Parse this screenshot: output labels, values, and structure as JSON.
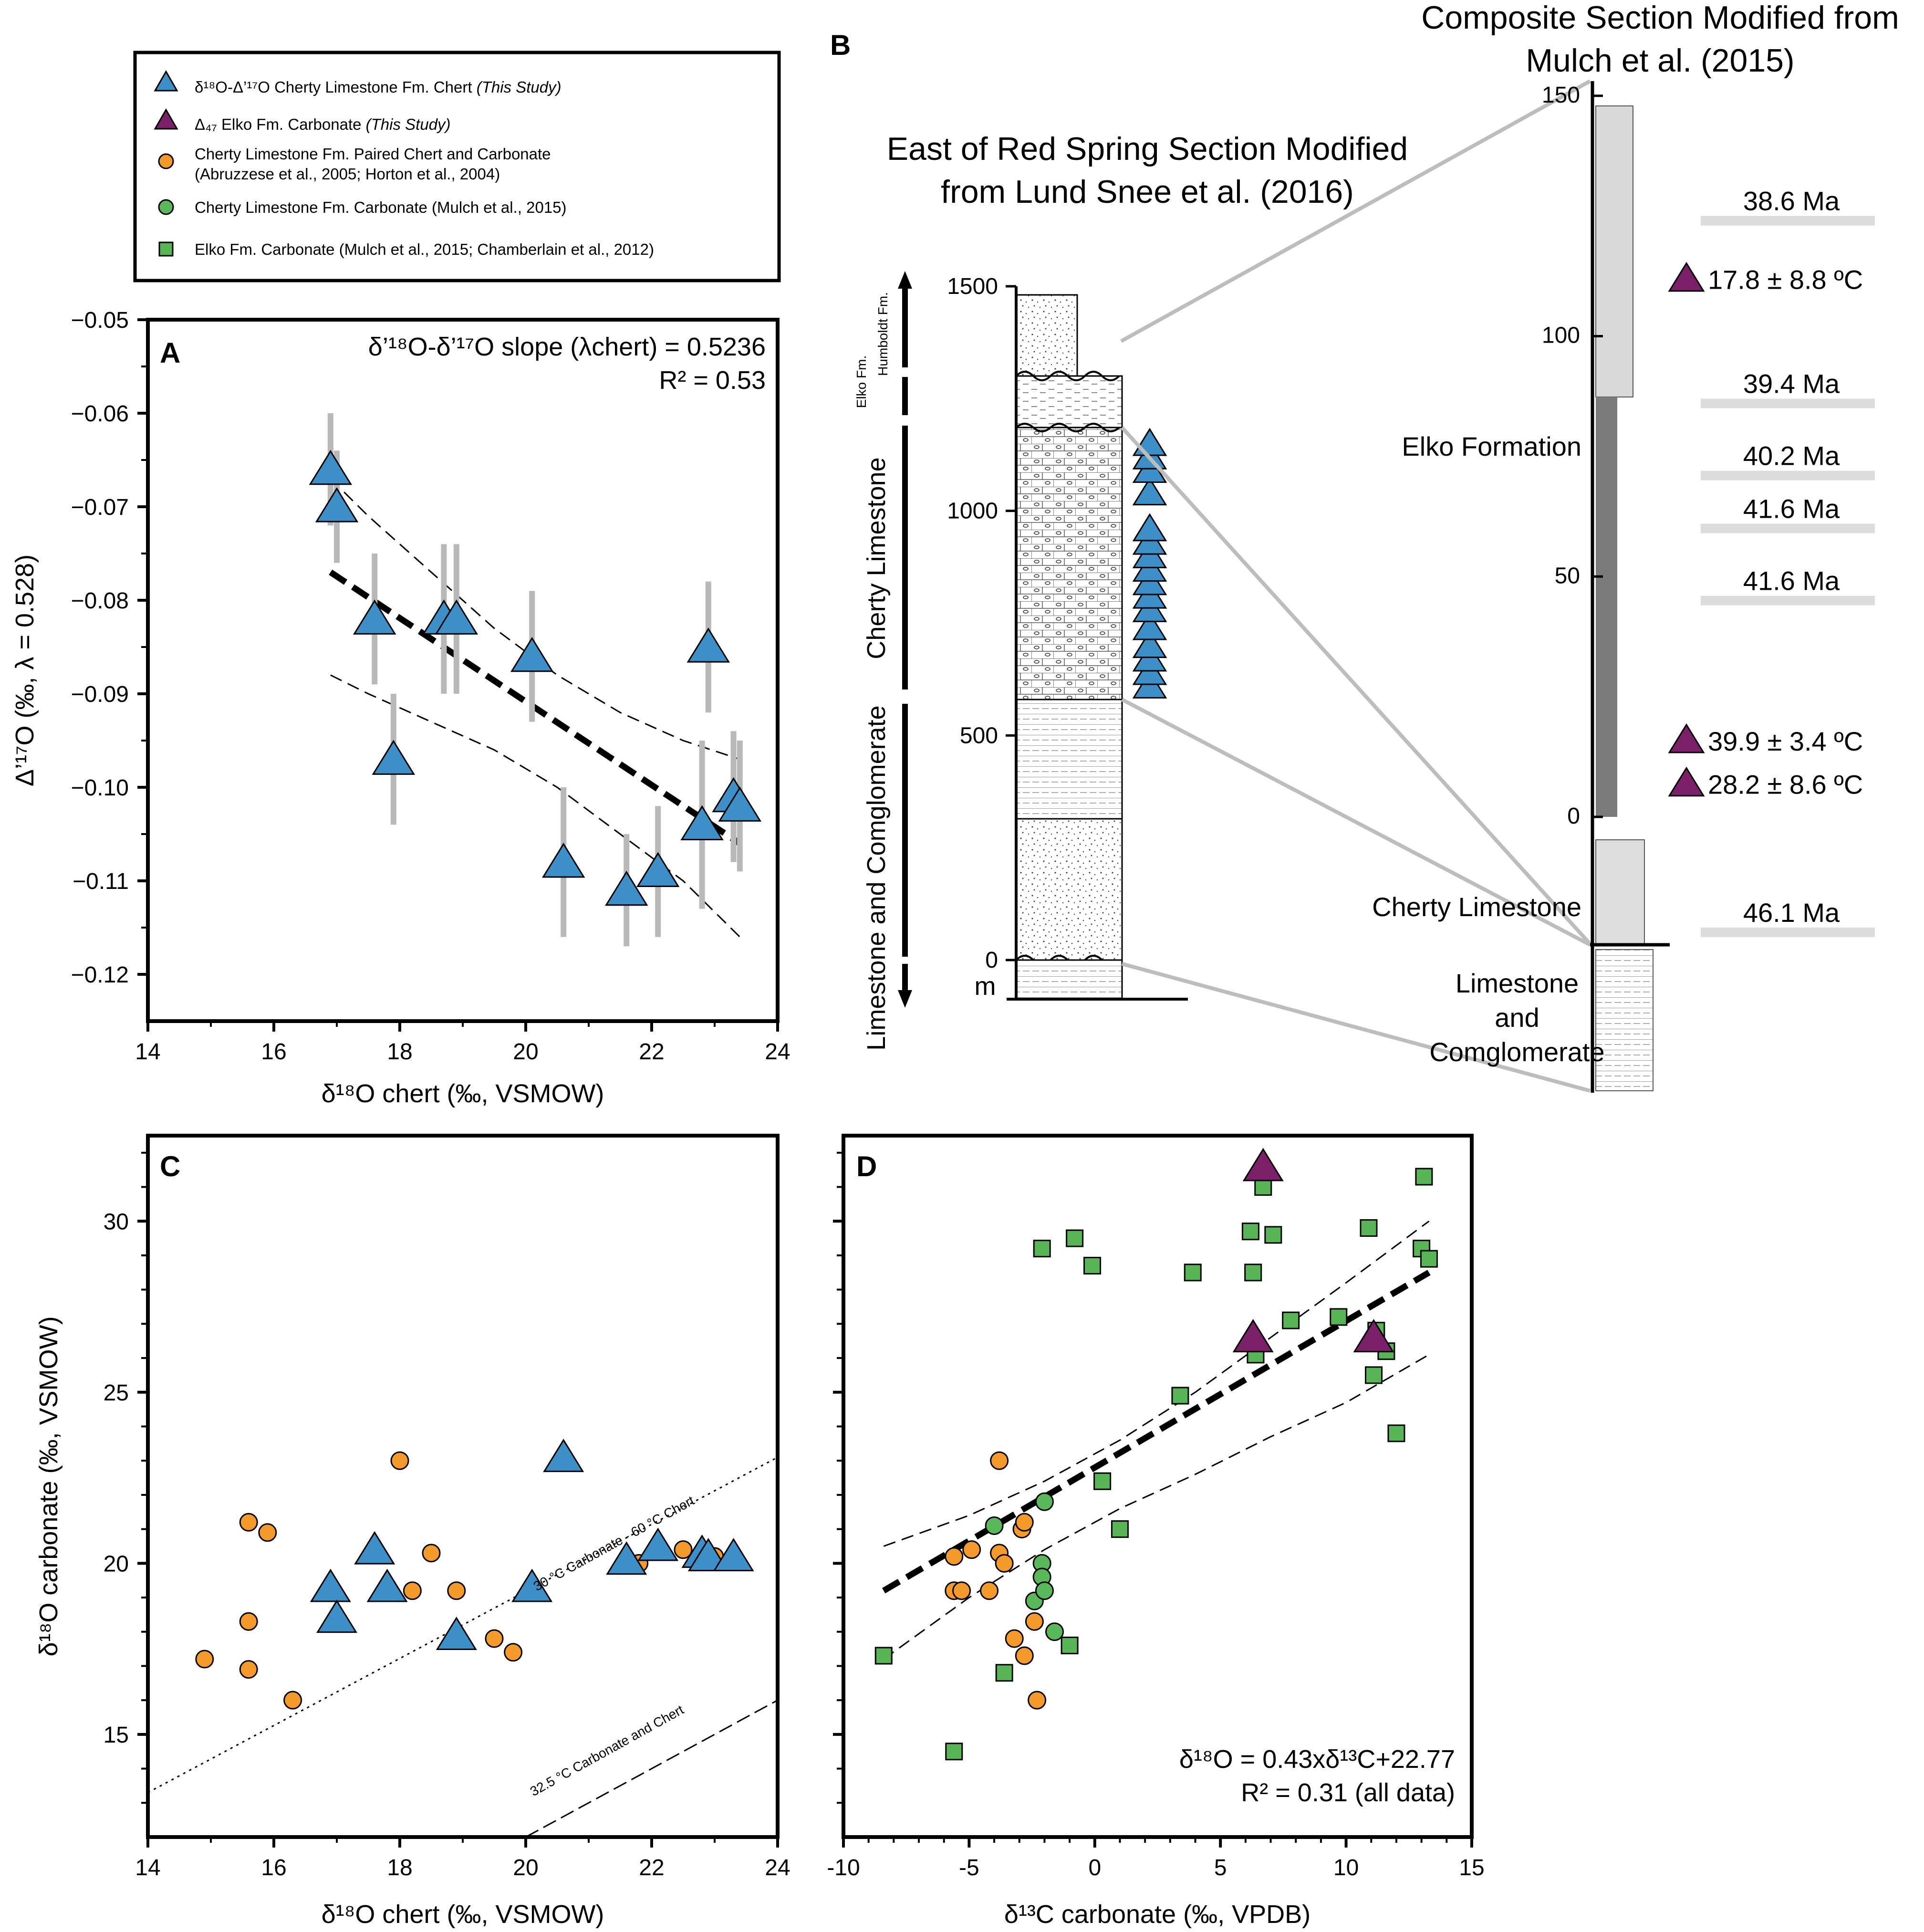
{
  "colors": {
    "chert": "#3d8fc7",
    "delta47": "#7a1f68",
    "orange": "#f39a2a",
    "green": "#58b85a",
    "greenSquare": "#57b556",
    "gray": "#b9b9b9",
    "darkgray": "#7a7a7a"
  },
  "legend": {
    "items": [
      {
        "symbol": "triangle-blue",
        "label": "δ¹⁸O-Δ’¹⁷O Cherty Limestone Fm. Chert",
        "tag": "(This Study)"
      },
      {
        "symbol": "triangle-purple",
        "label": "Δ₄₇ Elko Fm. Carbonate",
        "tag": "(This Study)"
      },
      {
        "symbol": "circle-orange",
        "label": "Cherty Limestone Fm. Paired Chert and Carbonate",
        "label2": "(Abruzzese et al., 2005; Horton et al., 2004)"
      },
      {
        "symbol": "circle-green",
        "label": "Cherty Limestone Fm. Carbonate (Mulch et al., 2015)"
      },
      {
        "symbol": "square-green",
        "label": "Elko Fm. Carbonate (Mulch et al., 2015; Chamberlain et al., 2012)"
      }
    ]
  },
  "chart_data": [
    {
      "panel": "A",
      "type": "scatter",
      "xlabel": "δ¹⁸O chert (‰, VSMOW)",
      "ylabel": "Δ’¹⁷O (‰, λ = 0.528)",
      "xlim": [
        14,
        24
      ],
      "ylim": [
        -0.125,
        -0.05
      ],
      "xticks": [
        14,
        16,
        18,
        20,
        22,
        24
      ],
      "yticks": [
        -0.12,
        -0.11,
        -0.1,
        -0.09,
        -0.08,
        -0.07,
        -0.06,
        -0.05
      ],
      "ytick_labels": [
        "−0.12",
        "−0.11",
        "−0.10",
        "−0.09",
        "−0.08",
        "−0.07",
        "−0.06",
        "−0.05"
      ],
      "annotation_line1": "δ’¹⁸O-δ’¹⁷O slope (λchert) = 0.5236",
      "annotation_line2": "R² = 0.53",
      "points": [
        {
          "x": 16.9,
          "y": -0.066,
          "err": 0.006
        },
        {
          "x": 17.0,
          "y": -0.07,
          "err": 0.006
        },
        {
          "x": 17.6,
          "y": -0.082,
          "err": 0.007
        },
        {
          "x": 17.9,
          "y": -0.097,
          "err": 0.007
        },
        {
          "x": 18.7,
          "y": -0.082,
          "err": 0.008
        },
        {
          "x": 18.9,
          "y": -0.082,
          "err": 0.008
        },
        {
          "x": 20.1,
          "y": -0.086,
          "err": 0.007
        },
        {
          "x": 20.6,
          "y": -0.108,
          "err": 0.008
        },
        {
          "x": 21.6,
          "y": -0.111,
          "err": 0.006
        },
        {
          "x": 22.1,
          "y": -0.109,
          "err": 0.007
        },
        {
          "x": 22.8,
          "y": -0.104,
          "err": 0.009
        },
        {
          "x": 22.9,
          "y": -0.085,
          "err": 0.007
        },
        {
          "x": 23.3,
          "y": -0.101,
          "err": 0.007
        },
        {
          "x": 23.4,
          "y": -0.102,
          "err": 0.007
        }
      ],
      "fit": {
        "x": [
          16.9,
          23.4
        ],
        "y": [
          -0.077,
          -0.106
        ]
      },
      "ci_upper": {
        "x": [
          16.9,
          17.5,
          18.5,
          19.5,
          20.5,
          21.5,
          22.5,
          23.4
        ],
        "y": [
          -0.067,
          -0.071,
          -0.077,
          -0.083,
          -0.088,
          -0.092,
          -0.095,
          -0.097
        ]
      },
      "ci_lower": {
        "x": [
          16.9,
          17.5,
          18.5,
          19.5,
          20.5,
          21.5,
          22.5,
          23.4
        ],
        "y": [
          -0.088,
          -0.09,
          -0.093,
          -0.096,
          -0.1,
          -0.105,
          -0.11,
          -0.116
        ]
      }
    },
    {
      "panel": "C",
      "type": "scatter",
      "xlabel": "δ¹⁸O chert (‰, VSMOW)",
      "ylabel": "δ¹⁸O carbonate (‰, VSMOW)",
      "xlim": [
        14,
        24
      ],
      "ylim": [
        12,
        32.5
      ],
      "xticks": [
        14,
        16,
        18,
        20,
        22,
        24
      ],
      "yticks": [
        15,
        20,
        25,
        30
      ],
      "blue": [
        [
          16.9,
          19.3
        ],
        [
          17.0,
          18.4
        ],
        [
          17.6,
          20.4
        ],
        [
          17.8,
          19.3
        ],
        [
          18.9,
          17.9
        ],
        [
          20.1,
          19.3
        ],
        [
          20.6,
          23.1
        ],
        [
          21.6,
          20.1
        ],
        [
          22.1,
          20.5
        ],
        [
          22.8,
          20.3
        ],
        [
          22.9,
          20.2
        ],
        [
          23.3,
          20.2
        ]
      ],
      "orange": [
        [
          14.9,
          17.2
        ],
        [
          15.6,
          21.2
        ],
        [
          15.6,
          18.3
        ],
        [
          15.6,
          16.9
        ],
        [
          15.9,
          20.9
        ],
        [
          16.3,
          16.0
        ],
        [
          18.0,
          23.0
        ],
        [
          18.2,
          19.2
        ],
        [
          18.5,
          20.3
        ],
        [
          18.9,
          19.2
        ],
        [
          19.5,
          17.8
        ],
        [
          19.8,
          17.4
        ],
        [
          21.8,
          20.0
        ],
        [
          22.5,
          20.4
        ],
        [
          23.0,
          20.2
        ]
      ],
      "line_30C": {
        "x": [
          14,
          24
        ],
        "y": [
          13.3,
          23.1
        ]
      },
      "line_32C": {
        "x": [
          20,
          24
        ],
        "y": [
          12.0,
          16.0
        ]
      },
      "label_30C": "30 °C Carbonate - 60 °C Chert",
      "label_32C": "32.5 °C Carbonate and Chert"
    },
    {
      "panel": "D",
      "type": "scatter",
      "xlabel": "δ¹³C carbonate (‰, VPDB)",
      "xlim": [
        -10,
        15
      ],
      "ylim": [
        12,
        32.5
      ],
      "xticks": [
        -10,
        -5,
        0,
        5,
        10,
        15
      ],
      "xtick_labels": [
        "-10",
        "-5",
        "0",
        "5",
        "10",
        "15"
      ],
      "yticks": [
        15,
        20,
        25,
        30
      ],
      "equation": "δ¹⁸O = 0.43xδ¹³C+22.77",
      "r2": "R² = 0.31 (all data)",
      "squares": [
        [
          -8.4,
          17.3
        ],
        [
          -5.6,
          14.5
        ],
        [
          -3.6,
          16.8
        ],
        [
          -2.1,
          29.2
        ],
        [
          -0.8,
          29.5
        ],
        [
          -0.1,
          28.7
        ],
        [
          0.3,
          22.4
        ],
        [
          1.0,
          21.0
        ],
        [
          -1.0,
          17.6
        ],
        [
          3.4,
          24.9
        ],
        [
          3.9,
          28.5
        ],
        [
          6.2,
          29.7
        ],
        [
          6.3,
          28.5
        ],
        [
          6.4,
          26.1
        ],
        [
          6.7,
          31.0
        ],
        [
          7.1,
          29.6
        ],
        [
          7.8,
          27.1
        ],
        [
          9.7,
          27.2
        ],
        [
          10.9,
          29.8
        ],
        [
          11.2,
          26.8
        ],
        [
          11.1,
          25.5
        ],
        [
          11.6,
          26.2
        ],
        [
          12.0,
          23.8
        ],
        [
          13.0,
          29.2
        ],
        [
          13.1,
          31.3
        ],
        [
          13.3,
          28.9
        ]
      ],
      "green": [
        [
          -4.0,
          21.1
        ],
        [
          -2.0,
          21.8
        ],
        [
          -2.1,
          20.0
        ],
        [
          -2.1,
          19.6
        ],
        [
          -2.4,
          18.9
        ],
        [
          -2.0,
          19.2
        ],
        [
          -1.6,
          18.0
        ]
      ],
      "orange": [
        [
          -5.6,
          20.2
        ],
        [
          -5.6,
          19.2
        ],
        [
          -5.3,
          19.2
        ],
        [
          -4.9,
          20.4
        ],
        [
          -4.2,
          19.2
        ],
        [
          -3.8,
          20.3
        ],
        [
          -3.6,
          20.0
        ],
        [
          -2.9,
          21.0
        ],
        [
          -2.8,
          21.2
        ],
        [
          -3.8,
          23.0
        ],
        [
          -3.2,
          17.8
        ],
        [
          -2.8,
          17.3
        ],
        [
          -2.4,
          18.3
        ],
        [
          -2.3,
          16.0
        ]
      ],
      "triangles": [
        [
          6.7,
          31.6
        ],
        [
          6.3,
          26.6
        ],
        [
          11.1,
          26.6
        ]
      ],
      "fit": {
        "x": [
          -8.4,
          13.3
        ],
        "y": [
          19.2,
          28.5
        ]
      },
      "ci_upper": {
        "x": [
          -8.4,
          -5,
          -2,
          1,
          4,
          7,
          10,
          13.3
        ],
        "y": [
          20.5,
          21.4,
          22.4,
          23.6,
          25.0,
          26.6,
          28.2,
          30.0
        ]
      },
      "ci_lower": {
        "x": [
          -8.4,
          -5,
          -2,
          1,
          4,
          7,
          10,
          13.3
        ],
        "y": [
          17.2,
          19.0,
          20.4,
          21.6,
          22.6,
          23.7,
          24.7,
          26.1
        ]
      }
    },
    {
      "panel": "B",
      "type": "stratigraphic-column",
      "left_title_line1": "East of Red Spring Section Modified",
      "left_title_line2": "from Lund Snee et al. (2016)",
      "right_title_line1": "Composite Section Modified from",
      "right_title_line2": "Mulch et al. (2015)",
      "left_scale_ticks": [
        0,
        500,
        1000,
        1500
      ],
      "left_scale_unit": "m",
      "right_scale_ticks": [
        0,
        50,
        100,
        150
      ],
      "units": [
        "Humboldt Fm.",
        "Elko Fm.",
        "Cherty Limestone",
        "Limestone and Comglomerate"
      ],
      "chert_sample_heights_m": [
        610,
        640,
        670,
        700,
        740,
        780,
        810,
        840,
        870,
        900,
        930,
        960,
        1040,
        1090,
        1120,
        1150
      ],
      "ages": [
        {
          "label": "38.6 Ma",
          "level_m": 124
        },
        {
          "label": "39.4 Ma",
          "level_m": 86
        },
        {
          "label": "40.2 Ma",
          "level_m": 71
        },
        {
          "label": "41.6 Ma",
          "level_m": 60
        },
        {
          "label": "41.6 Ma",
          "level_m": 45
        },
        {
          "label": "46.1 Ma",
          "level_m": -24
        }
      ],
      "temperatures": [
        {
          "label": "17.8 ± 8.8 ºC",
          "level_m": 112
        },
        {
          "label": "39.9 ± 3.4 ºC",
          "level_m": 16
        },
        {
          "label": "28.2 ± 8.6 ºC",
          "level_m": 7
        }
      ],
      "right_units": [
        {
          "label": "Elko Formation"
        },
        {
          "label": "Cherty Limestone"
        },
        {
          "label": "Limestone"
        },
        {
          "label": "and"
        },
        {
          "label": "Comglomerate"
        }
      ]
    }
  ],
  "panel_letters": {
    "a": "A",
    "b": "B",
    "c": "C",
    "d": "D"
  }
}
